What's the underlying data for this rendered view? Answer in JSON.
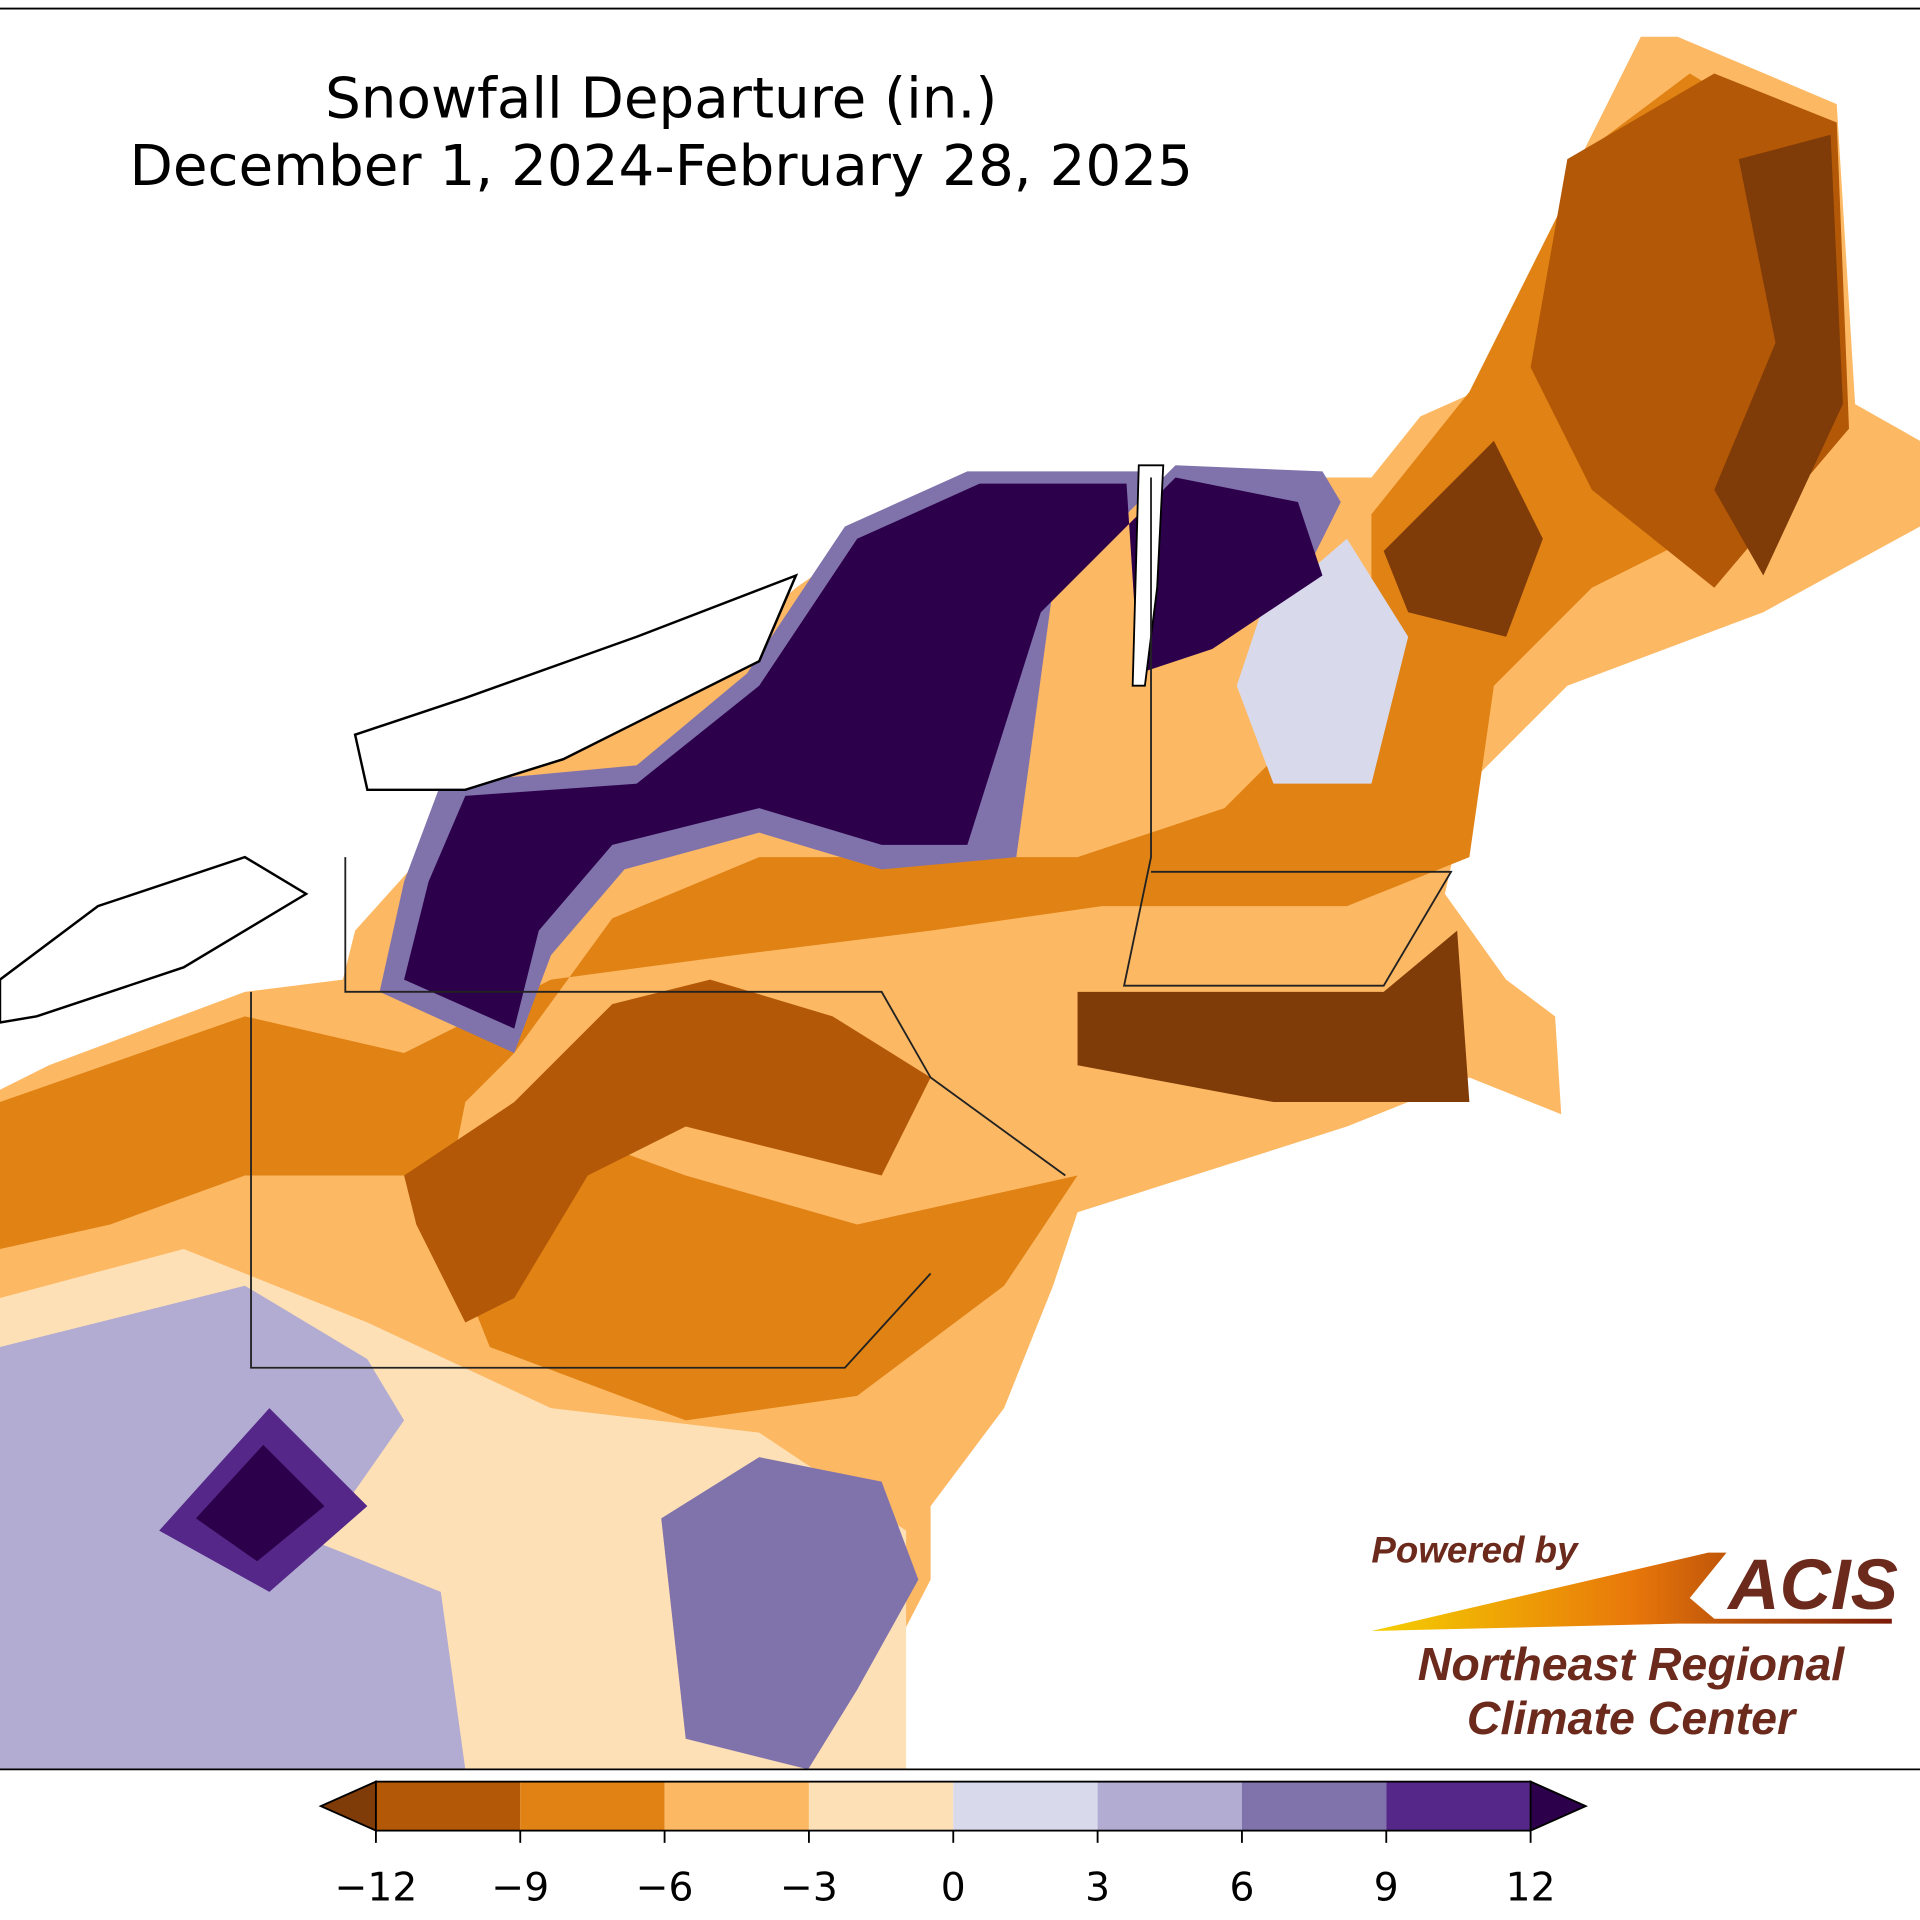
{
  "title": "Snowfall Departure (in.)",
  "subtitle": "December 1, 2024-February 28, 2025",
  "colorbar": {
    "ticks": [
      {
        "value": -12,
        "label": "−12"
      },
      {
        "value": -9,
        "label": "−9"
      },
      {
        "value": -6,
        "label": "−6"
      },
      {
        "value": -3,
        "label": "−3"
      },
      0,
      3,
      6,
      9,
      12
    ],
    "colors": [
      "#b35806",
      "#e08214",
      "#fdb863",
      "#fee0b6",
      "#d8daeb",
      "#b2abd2",
      "#8073ac",
      "#542788"
    ],
    "under_color": "#7f3b08",
    "over_color": "#2d004b",
    "extend": "both"
  },
  "logo": {
    "powered_by": "Powered by",
    "name": "ACIS",
    "org_line1": "Northeast Regional",
    "org_line2": "Climate Center"
  }
}
